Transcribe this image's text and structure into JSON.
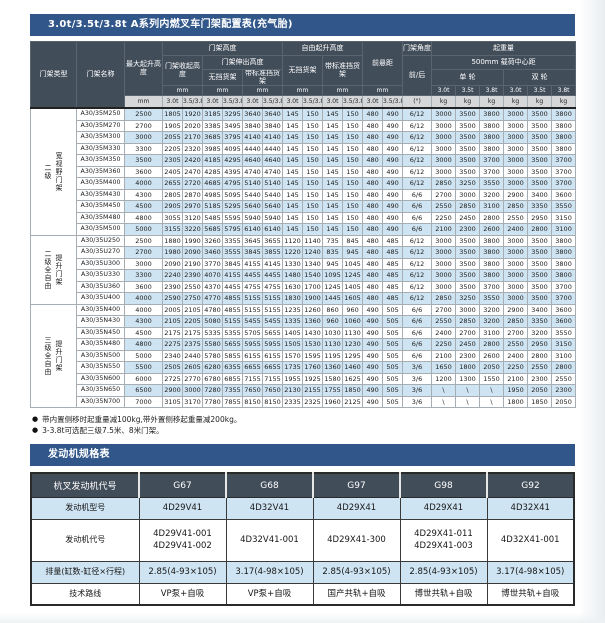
{
  "colors": {
    "blue": "#30568a",
    "slate": "#424d5a",
    "rowblue": "#cfe4f2"
  },
  "mast_table": {
    "title": "3.0t/3.5t/3.8t A系列内燃叉车门架配置表(充气胎)",
    "header": {
      "col_type": "门架类型",
      "col_name": "门架名称",
      "col_max_lift": "最大起升高度",
      "group_mast_height": "门架高度",
      "retracted": "门架收起高度",
      "extended": "门架伸出高度",
      "no_backrest": "无挡货架",
      "std_backrest": "带标准挡货架",
      "group_free_lift": "自由起升高度",
      "free_no_backrest": "无挡货架",
      "free_std_backrest": "带标准挡货架",
      "front_overhang": "前悬距",
      "mast_angle": "门架角度",
      "angle_fr": "前/后",
      "capacity": "起重量",
      "load_center": "500mm 载荷中心距",
      "single_wheel": "单 轮",
      "double_wheel": "双 轮",
      "unit_mm": "mm",
      "unit_deg": "(°)",
      "unit_kg": "kg",
      "sub_30": "3.0t",
      "sub_3538": "3.5/3.8t",
      "t30": "3.0t",
      "t35": "3.5t",
      "t38": "3.8t"
    },
    "groups": [
      {
        "label_lines": [
          "二级",
          "宽视野门架"
        ],
        "rows": [
          {
            "name": "A30/35M250",
            "values": [
              "2500",
              "1805",
              "1920",
              "3185",
              "3295",
              "3640",
              "3640",
              "145",
              "150",
              "145",
              "150",
              "480",
              "490",
              "6/12",
              "3000",
              "3500",
              "3800",
              "3000",
              "3500",
              "3800"
            ]
          },
          {
            "name": "A30/35M270",
            "values": [
              "2700",
              "1905",
              "2020",
              "3385",
              "3495",
              "3840",
              "3840",
              "145",
              "150",
              "145",
              "150",
              "480",
              "490",
              "6/12",
              "3000",
              "3500",
              "3800",
              "3000",
              "3500",
              "3800"
            ]
          },
          {
            "name": "A30/35M300",
            "values": [
              "3000",
              "2055",
              "2170",
              "3685",
              "3795",
              "4140",
              "4140",
              "145",
              "150",
              "145",
              "150",
              "480",
              "490",
              "6/12",
              "3000",
              "3500",
              "3800",
              "3000",
              "3500",
              "3800"
            ]
          },
          {
            "name": "A30/35M330",
            "values": [
              "3300",
              "2205",
              "2320",
              "3985",
              "4095",
              "4440",
              "4440",
              "145",
              "150",
              "145",
              "150",
              "480",
              "490",
              "6/12",
              "3000",
              "3500",
              "3800",
              "3000",
              "3500",
              "3800"
            ]
          },
          {
            "name": "A30/35M350",
            "values": [
              "3500",
              "2305",
              "2420",
              "4185",
              "4295",
              "4640",
              "4640",
              "145",
              "150",
              "145",
              "150",
              "480",
              "490",
              "6/12",
              "3000",
              "3500",
              "3700",
              "3000",
              "3500",
              "3700"
            ]
          },
          {
            "name": "A30/35M360",
            "values": [
              "3600",
              "2405",
              "2470",
              "4285",
              "4395",
              "4740",
              "4740",
              "145",
              "150",
              "145",
              "150",
              "480",
              "490",
              "6/12",
              "3000",
              "3500",
              "3700",
              "3000",
              "3500",
              "3700"
            ]
          },
          {
            "name": "A30/35M400",
            "values": [
              "4000",
              "2655",
              "2720",
              "4685",
              "4795",
              "5140",
              "5140",
              "145",
              "150",
              "145",
              "150",
              "480",
              "490",
              "6/12",
              "2850",
              "3250",
              "3550",
              "3000",
              "3500",
              "3700"
            ]
          },
          {
            "name": "A30/35M430",
            "values": [
              "4300",
              "2805",
              "2870",
              "4985",
              "5095",
              "5440",
              "5440",
              "145",
              "150",
              "145",
              "150",
              "480",
              "490",
              "6/6",
              "2700",
              "3000",
              "3200",
              "2900",
              "3400",
              "3600"
            ]
          },
          {
            "name": "A30/35M450",
            "values": [
              "4500",
              "2905",
              "2970",
              "5185",
              "5295",
              "5640",
              "5640",
              "145",
              "150",
              "145",
              "150",
              "480",
              "490",
              "6/6",
              "2550",
              "2850",
              "3100",
              "2850",
              "3350",
              "3550"
            ]
          },
          {
            "name": "A30/35M480",
            "values": [
              "4800",
              "3055",
              "3120",
              "5485",
              "5595",
              "5940",
              "5940",
              "145",
              "150",
              "145",
              "150",
              "480",
              "490",
              "6/6",
              "2250",
              "2450",
              "2800",
              "2550",
              "2950",
              "3150"
            ]
          },
          {
            "name": "A30/35M500",
            "values": [
              "5000",
              "3155",
              "3220",
              "5685",
              "5795",
              "6140",
              "6140",
              "145",
              "150",
              "145",
              "150",
              "480",
              "490",
              "6/6",
              "2100",
              "2300",
              "2600",
              "2400",
              "2800",
              "3100"
            ]
          }
        ]
      },
      {
        "label_lines": [
          "二级全自由",
          "提升门架"
        ],
        "rows": [
          {
            "name": "A30/35U250",
            "values": [
              "2500",
              "1880",
              "1990",
              "3260",
              "3355",
              "3645",
              "3655",
              "1120",
              "1140",
              "735",
              "845",
              "480",
              "485",
              "6/12",
              "3000",
              "3500",
              "3800",
              "3000",
              "3500",
              "3800"
            ]
          },
          {
            "name": "A30/35U270",
            "values": [
              "2700",
              "1980",
              "2090",
              "3460",
              "3555",
              "3845",
              "3855",
              "1220",
              "1240",
              "835",
              "945",
              "480",
              "485",
              "6/12",
              "3000",
              "3500",
              "3800",
              "3000",
              "3500",
              "3800"
            ]
          },
          {
            "name": "A30/35U300",
            "values": [
              "3000",
              "2090",
              "2190",
              "3770",
              "3845",
              "4155",
              "4145",
              "1330",
              "1340",
              "945",
              "1045",
              "480",
              "485",
              "6/12",
              "3000",
              "3500",
              "3800",
              "3000",
              "3500",
              "3800"
            ]
          },
          {
            "name": "A30/35U330",
            "values": [
              "3300",
              "2240",
              "2390",
              "4070",
              "4155",
              "4455",
              "4455",
              "1480",
              "1540",
              "1095",
              "1245",
              "480",
              "485",
              "6/12",
              "3000",
              "3500",
              "3800",
              "3000",
              "3500",
              "3800"
            ]
          },
          {
            "name": "A30/35U360",
            "values": [
              "3600",
              "2390",
              "2550",
              "4370",
              "4455",
              "4755",
              "4755",
              "1630",
              "1700",
              "1245",
              "1405",
              "480",
              "485",
              "6/12",
              "3000",
              "3500",
              "3700",
              "3000",
              "3500",
              "3700"
            ]
          },
          {
            "name": "A30/35U400",
            "values": [
              "4000",
              "2590",
              "2750",
              "4770",
              "4855",
              "5155",
              "5155",
              "1830",
              "1900",
              "1445",
              "1605",
              "480",
              "485",
              "6/12",
              "2850",
              "3250",
              "3550",
              "3000",
              "3500",
              "3700"
            ]
          }
        ]
      },
      {
        "label_lines": [
          "三级全自由",
          "提升门架"
        ],
        "rows": [
          {
            "name": "A30/35N400",
            "values": [
              "4000",
              "2005",
              "2105",
              "4780",
              "4855",
              "5155",
              "5155",
              "1235",
              "1260",
              "860",
              "960",
              "490",
              "505",
              "6/6",
              "2700",
              "3000",
              "3200",
              "2900",
              "3400",
              "3600"
            ]
          },
          {
            "name": "A30/35N430",
            "values": [
              "4300",
              "2105",
              "2205",
              "5080",
              "5155",
              "5455",
              "5455",
              "1335",
              "1360",
              "960",
              "1060",
              "490",
              "505",
              "6/6",
              "2550",
              "2850",
              "3200",
              "2850",
              "3350",
              "3600"
            ]
          },
          {
            "name": "A30/35N450",
            "values": [
              "4500",
              "2175",
              "2175",
              "5335",
              "5355",
              "5705",
              "5655",
              "1405",
              "1430",
              "1030",
              "1130",
              "490",
              "505",
              "6/6",
              "2400",
              "2700",
              "3100",
              "2700",
              "3200",
              "3550"
            ]
          },
          {
            "name": "A30/35N480",
            "values": [
              "4800",
              "2275",
              "2375",
              "5580",
              "5655",
              "5955",
              "5955",
              "1505",
              "1530",
              "1130",
              "1230",
              "490",
              "505",
              "6/6",
              "2250",
              "2450",
              "2800",
              "2550",
              "2950",
              "3150"
            ]
          },
          {
            "name": "A30/35N500",
            "values": [
              "5000",
              "2340",
              "2440",
              "5780",
              "5855",
              "6155",
              "6155",
              "1570",
              "1595",
              "1195",
              "1295",
              "490",
              "505",
              "6/6",
              "2100",
              "2300",
              "2600",
              "2400",
              "2800",
              "3100"
            ]
          },
          {
            "name": "A30/35N550",
            "values": [
              "5500",
              "2505",
              "2605",
              "6280",
              "6355",
              "6655",
              "6655",
              "1735",
              "1760",
              "1360",
              "1460",
              "490",
              "505",
              "3/6",
              "1650",
              "1800",
              "2050",
              "2250",
              "2550",
              "2800"
            ]
          },
          {
            "name": "A30/35N600",
            "values": [
              "6000",
              "2725",
              "2770",
              "6780",
              "6855",
              "7155",
              "7155",
              "1955",
              "1925",
              "1580",
              "1625",
              "490",
              "505",
              "3/6",
              "1200",
              "1300",
              "1550",
              "2100",
              "2300",
              "2550"
            ]
          },
          {
            "name": "A30/35N650",
            "values": [
              "6500",
              "2900",
              "3000",
              "7280",
              "7355",
              "7650",
              "7650",
              "2130",
              "2155",
              "1755",
              "1850",
              "490",
              "505",
              "3/6",
              "\\",
              "\\",
              "\\",
              "1950",
              "2050",
              "2300"
            ]
          },
          {
            "name": "A30/35N700",
            "values": [
              "7000",
              "3105",
              "3170",
              "7780",
              "7855",
              "8150",
              "8150",
              "2335",
              "2325",
              "1960",
              "2125",
              "490",
              "505",
              "3/6",
              "\\",
              "\\",
              "\\",
              "1800",
              "1850",
              "2050"
            ]
          }
        ]
      }
    ],
    "bullet": "●",
    "footnotes": [
      "带内置侧移时起重量减100kg,带外置侧移起重量减200kg。",
      "3-3.8t可选配三级7.5米、8米门架。"
    ]
  },
  "engine_table": {
    "title": "发动机规格表",
    "header_label": "杭叉发动机代号",
    "codes": [
      "G67",
      "G68",
      "G97",
      "G98",
      "G92"
    ],
    "rows": [
      {
        "label": "发动机型号",
        "values": [
          "4D29V41",
          "4D32V41",
          "4D29X41",
          "4D29X41",
          "4D32X41"
        ]
      },
      {
        "label": "发动机代号",
        "values": [
          "4D29V41-001\n4D29V41-002",
          "4D32V41-001",
          "4D29X41-300",
          "4D29X41-011\n4D29X41-003",
          "4D32X41-001"
        ]
      },
      {
        "label": "排量(缸数-缸径×行程)",
        "values": [
          "2.85(4-93×105)",
          "3.17(4-98×105)",
          "2.85(4-93×105)",
          "2.85(4-93×105)",
          "3.17(4-98×105)"
        ]
      },
      {
        "label": "技术路线",
        "values": [
          "VP泵+自吸",
          "VP泵+自吸",
          "国产共轨+自吸",
          "博世共轨+自吸",
          "博世共轨+自吸"
        ]
      }
    ]
  }
}
